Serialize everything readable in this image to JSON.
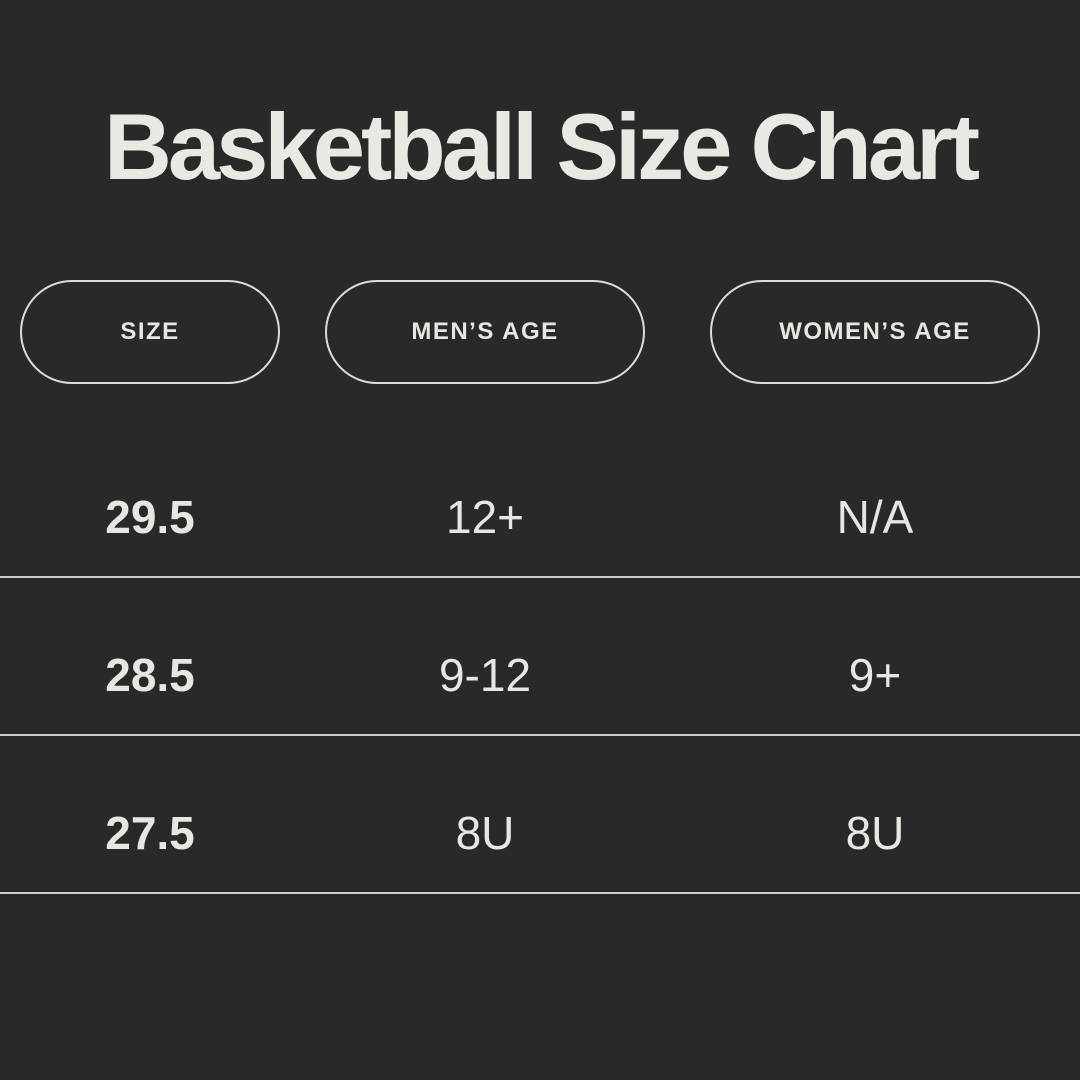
{
  "title": "Basketball Size Chart",
  "theme": {
    "background": "#2a2928",
    "text_color": "#e8e6e0",
    "title_color": "#eae8e2",
    "pill_border_color": "#dedcd6",
    "divider_color": "#d0cec9"
  },
  "table": {
    "columns": [
      {
        "id": "size",
        "label": "SIZE"
      },
      {
        "id": "mens_age",
        "label": "MEN’S AGE"
      },
      {
        "id": "womens_age",
        "label": "WOMEN’S AGE"
      }
    ],
    "rows": [
      {
        "size": "29.5",
        "mens_age": "12+",
        "womens_age": "N/A"
      },
      {
        "size": "28.5",
        "mens_age": "9-12",
        "womens_age": "9+"
      },
      {
        "size": "27.5",
        "mens_age": "8U",
        "womens_age": "8U"
      }
    ]
  }
}
